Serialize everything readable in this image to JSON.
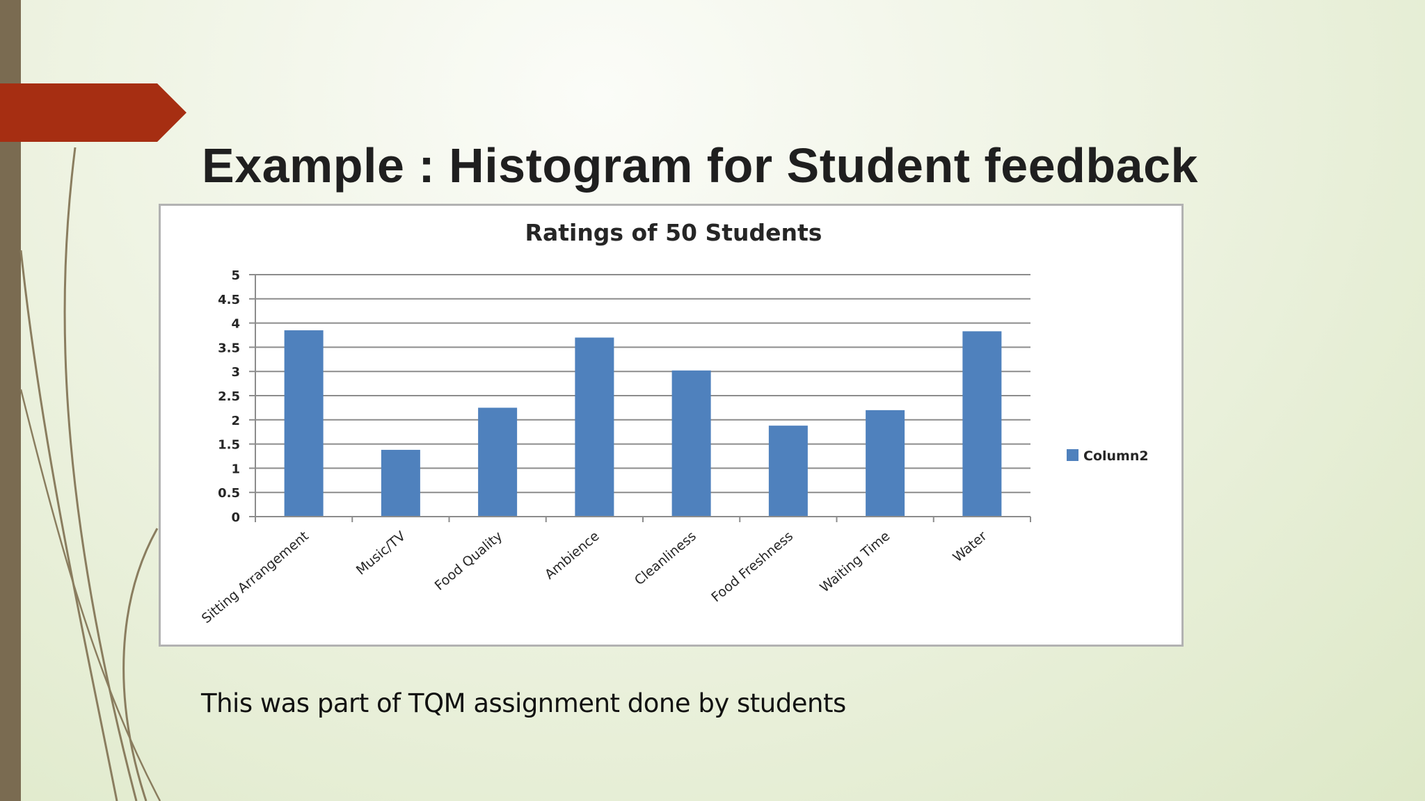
{
  "slide": {
    "title": "Example : Histogram for Student feedback",
    "caption": "This was part of TQM assignment done by students"
  },
  "theme": {
    "accent": "#a62e12",
    "side_bar": "#7a6b51",
    "bar_color": "#4f81bd"
  },
  "chart_data": {
    "type": "bar",
    "title": "Ratings of 50 Students",
    "categories": [
      "Sitting Arrangement",
      "Music/TV",
      "Food Quality",
      "Ambience",
      "Cleanliness",
      "Food Freshness",
      "Waiting Time",
      "Water"
    ],
    "series": [
      {
        "name": "Column2",
        "values": [
          3.85,
          1.38,
          2.25,
          3.7,
          3.02,
          1.88,
          2.2,
          3.83
        ]
      }
    ],
    "ylim": [
      0,
      5
    ],
    "yticks": [
      "0",
      "0.5",
      "1",
      "1.5",
      "2",
      "2.5",
      "3",
      "3.5",
      "4",
      "4.5",
      "5"
    ],
    "grid": true,
    "legend": "right"
  }
}
